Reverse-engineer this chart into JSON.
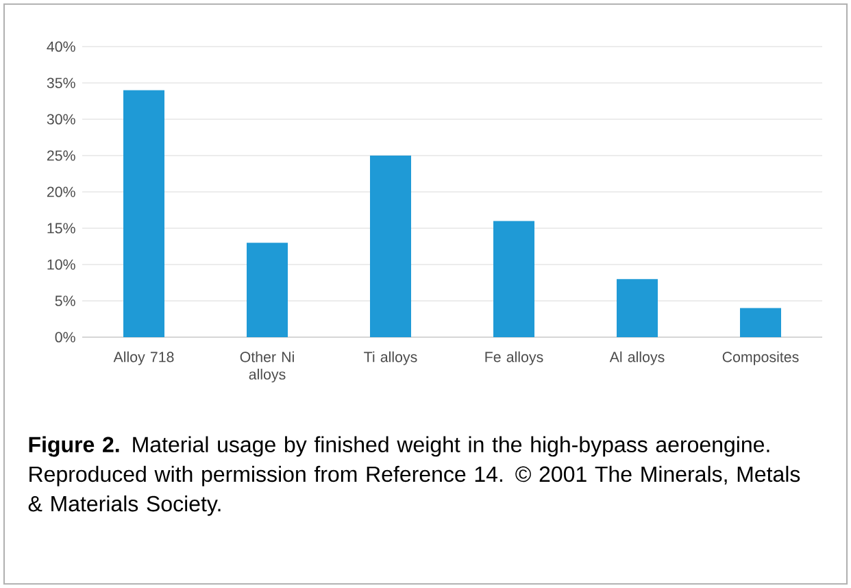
{
  "chart_data": {
    "type": "bar",
    "categories": [
      "Alloy 718",
      "Other Ni alloys",
      "Ti alloys",
      "Fe alloys",
      "Al alloys",
      "Composites"
    ],
    "values": [
      34,
      13,
      25,
      16,
      8,
      4
    ],
    "color": "#1f9ad6",
    "ylim": [
      0,
      40
    ],
    "yticks": [
      {
        "value": 0,
        "label": "0%"
      },
      {
        "value": 5,
        "label": "5%"
      },
      {
        "value": 10,
        "label": "10%"
      },
      {
        "value": 15,
        "label": "15%"
      },
      {
        "value": 20,
        "label": "20%"
      },
      {
        "value": 25,
        "label": "25%"
      },
      {
        "value": 30,
        "label": "30%"
      },
      {
        "value": 35,
        "label": "35%"
      },
      {
        "value": 40,
        "label": "40%"
      }
    ],
    "grid": "y",
    "annotations": [
      "**Figure 2.** Material usage by finished weight in the high-bypass aeroengine. Reproduced with permission from Reference 14. © 2001 The Minerals, Metals & Materials Society."
    ]
  }
}
